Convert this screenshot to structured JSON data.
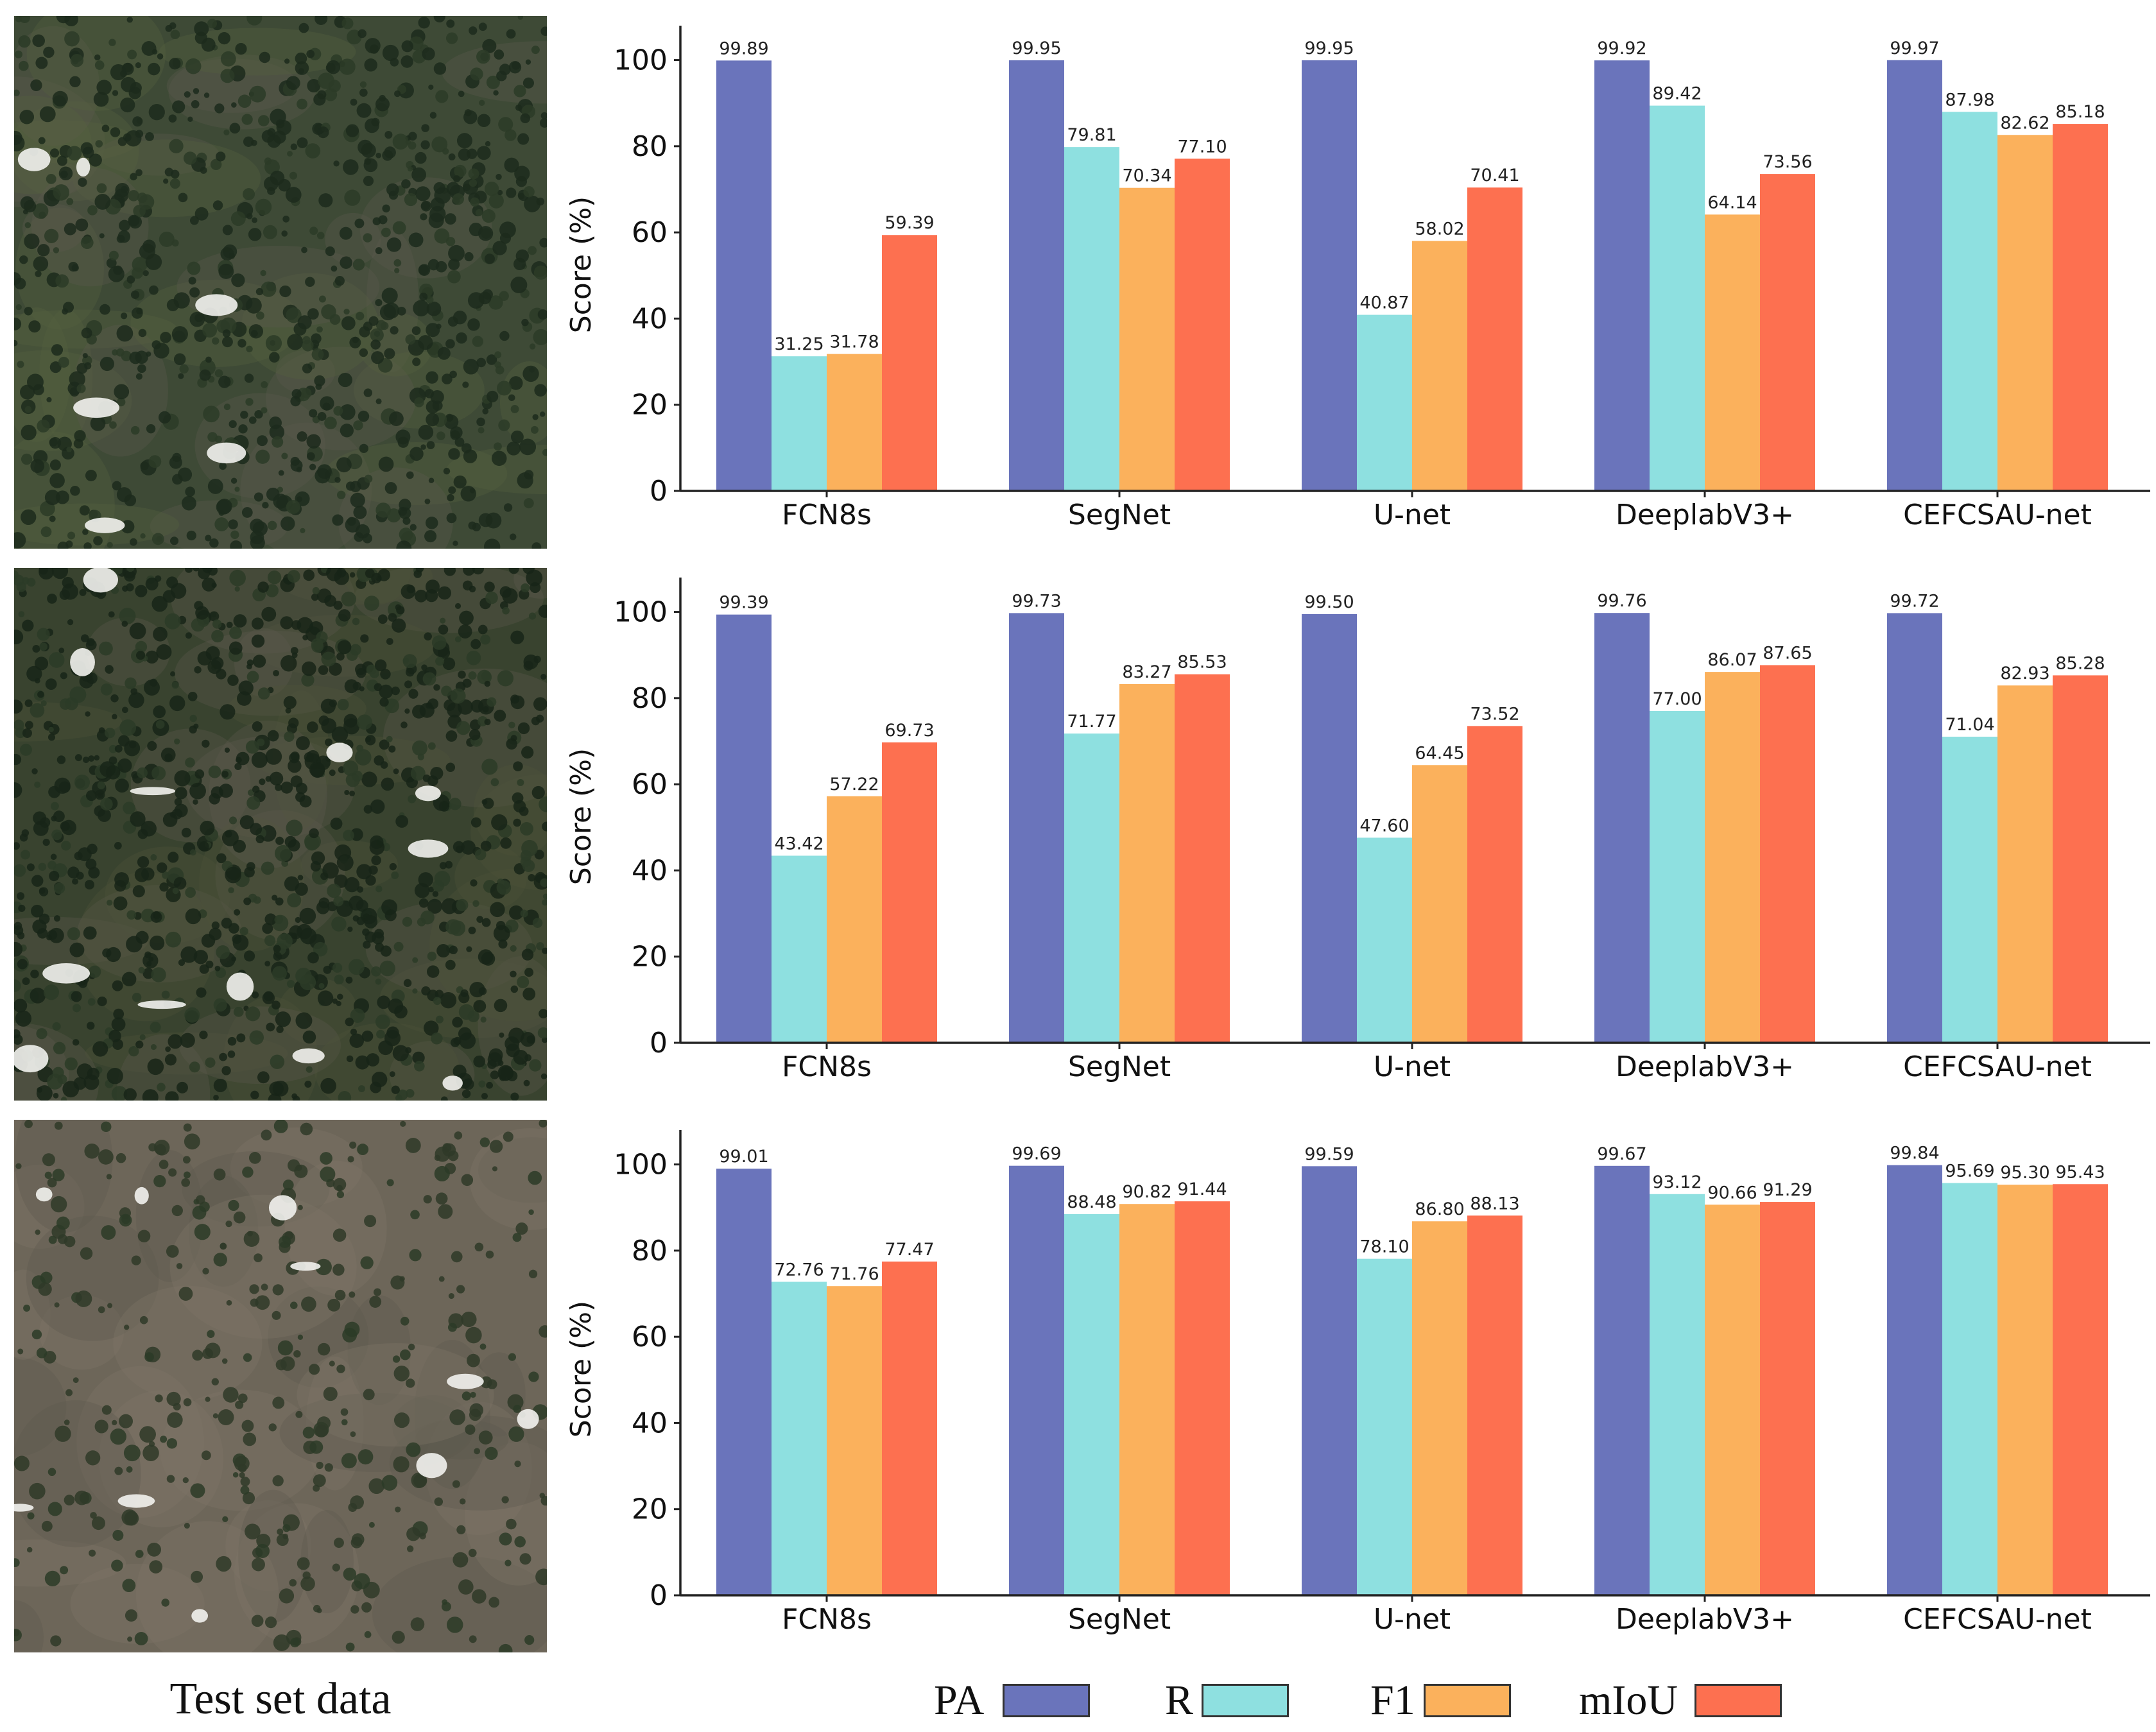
{
  "colors": {
    "PA": "#6a74bb",
    "R": "#8ee0e0",
    "F1": "#fbb15c",
    "mIoU": "#fd7050"
  },
  "caption": "Test set data",
  "legend": [
    {
      "key": "PA",
      "label": "PA"
    },
    {
      "key": "R",
      "label": "R"
    },
    {
      "key": "F1",
      "label": "F1"
    },
    {
      "key": "mIoU",
      "label": "mIoU"
    }
  ],
  "thumbnails": [
    {
      "scene": "dense-forest-sparse-clearings"
    },
    {
      "scene": "forest-with-snow-patches"
    },
    {
      "scene": "sparse-vegetation-rocky-terrain"
    }
  ],
  "chart_data": [
    {
      "type": "bar",
      "title": "",
      "xlabel": "",
      "ylabel": "Score (%)",
      "ylim": [
        0,
        105
      ],
      "yticks": [
        0,
        20,
        40,
        60,
        80,
        100
      ],
      "grid": false,
      "categories": [
        "FCN8s",
        "SegNet",
        "U-net",
        "DeeplabV3+",
        "CEFCSAU-net"
      ],
      "series": [
        {
          "name": "PA",
          "values": [
            99.89,
            99.95,
            99.95,
            99.92,
            99.97
          ],
          "labels": [
            "99.89",
            "99.95",
            "99.95",
            "99.92",
            "99.97"
          ]
        },
        {
          "name": "R",
          "values": [
            31.25,
            79.81,
            40.87,
            89.42,
            87.98
          ],
          "labels": [
            "31.25",
            "79.81",
            "40.87",
            "89.42",
            "87.98"
          ]
        },
        {
          "name": "F1",
          "values": [
            31.78,
            70.34,
            58.02,
            64.14,
            82.62
          ],
          "labels": [
            "31.78",
            "70.34",
            "58.02",
            "64.14",
            "82.62"
          ]
        },
        {
          "name": "mIoU",
          "values": [
            59.39,
            77.1,
            70.41,
            73.56,
            85.18
          ],
          "labels": [
            "59.39",
            "77.10",
            "70.41",
            "73.56",
            "85.18"
          ]
        }
      ]
    },
    {
      "type": "bar",
      "title": "",
      "xlabel": "",
      "ylabel": "Score (%)",
      "ylim": [
        0,
        105
      ],
      "yticks": [
        0,
        20,
        40,
        60,
        80,
        100
      ],
      "grid": false,
      "categories": [
        "FCN8s",
        "SegNet",
        "U-net",
        "DeeplabV3+",
        "CEFCSAU-net"
      ],
      "series": [
        {
          "name": "PA",
          "values": [
            99.39,
            99.73,
            99.5,
            99.76,
            99.72
          ],
          "labels": [
            "99.39",
            "99.73",
            "99.50",
            "99.76",
            "99.72"
          ]
        },
        {
          "name": "R",
          "values": [
            43.42,
            71.77,
            47.6,
            77.0,
            71.04
          ],
          "labels": [
            "43.42",
            "71.77",
            "47.60",
            "77.00",
            "71.04"
          ]
        },
        {
          "name": "F1",
          "values": [
            57.22,
            83.27,
            64.45,
            86.07,
            82.93
          ],
          "labels": [
            "57.22",
            "83.27",
            "64.45",
            "86.07",
            "82.93"
          ]
        },
        {
          "name": "mIoU",
          "values": [
            69.73,
            85.53,
            73.52,
            87.65,
            85.28
          ],
          "labels": [
            "69.73",
            "85.53",
            "73.52",
            "87.65",
            "85.28"
          ]
        }
      ]
    },
    {
      "type": "bar",
      "title": "",
      "xlabel": "",
      "ylabel": "Score (%)",
      "ylim": [
        0,
        105
      ],
      "yticks": [
        0,
        20,
        40,
        60,
        80,
        100
      ],
      "grid": false,
      "categories": [
        "FCN8s",
        "SegNet",
        "U-net",
        "DeeplabV3+",
        "CEFCSAU-net"
      ],
      "series": [
        {
          "name": "PA",
          "values": [
            99.01,
            99.69,
            99.59,
            99.67,
            99.84
          ],
          "labels": [
            "99.01",
            "99.69",
            "99.59",
            "99.67",
            "99.84"
          ]
        },
        {
          "name": "R",
          "values": [
            72.76,
            88.48,
            78.1,
            93.12,
            95.69
          ],
          "labels": [
            "72.76",
            "88.48",
            "78.10",
            "93.12",
            "95.69"
          ]
        },
        {
          "name": "F1",
          "values": [
            71.76,
            90.82,
            86.8,
            90.66,
            95.3
          ],
          "labels": [
            "71.76",
            "90.82",
            "86.80",
            "90.66",
            "95.30"
          ]
        },
        {
          "name": "mIoU",
          "values": [
            77.47,
            91.44,
            88.13,
            91.29,
            95.43
          ],
          "labels": [
            "77.47",
            "91.44",
            "88.13",
            "91.29",
            "95.43"
          ]
        }
      ]
    }
  ]
}
